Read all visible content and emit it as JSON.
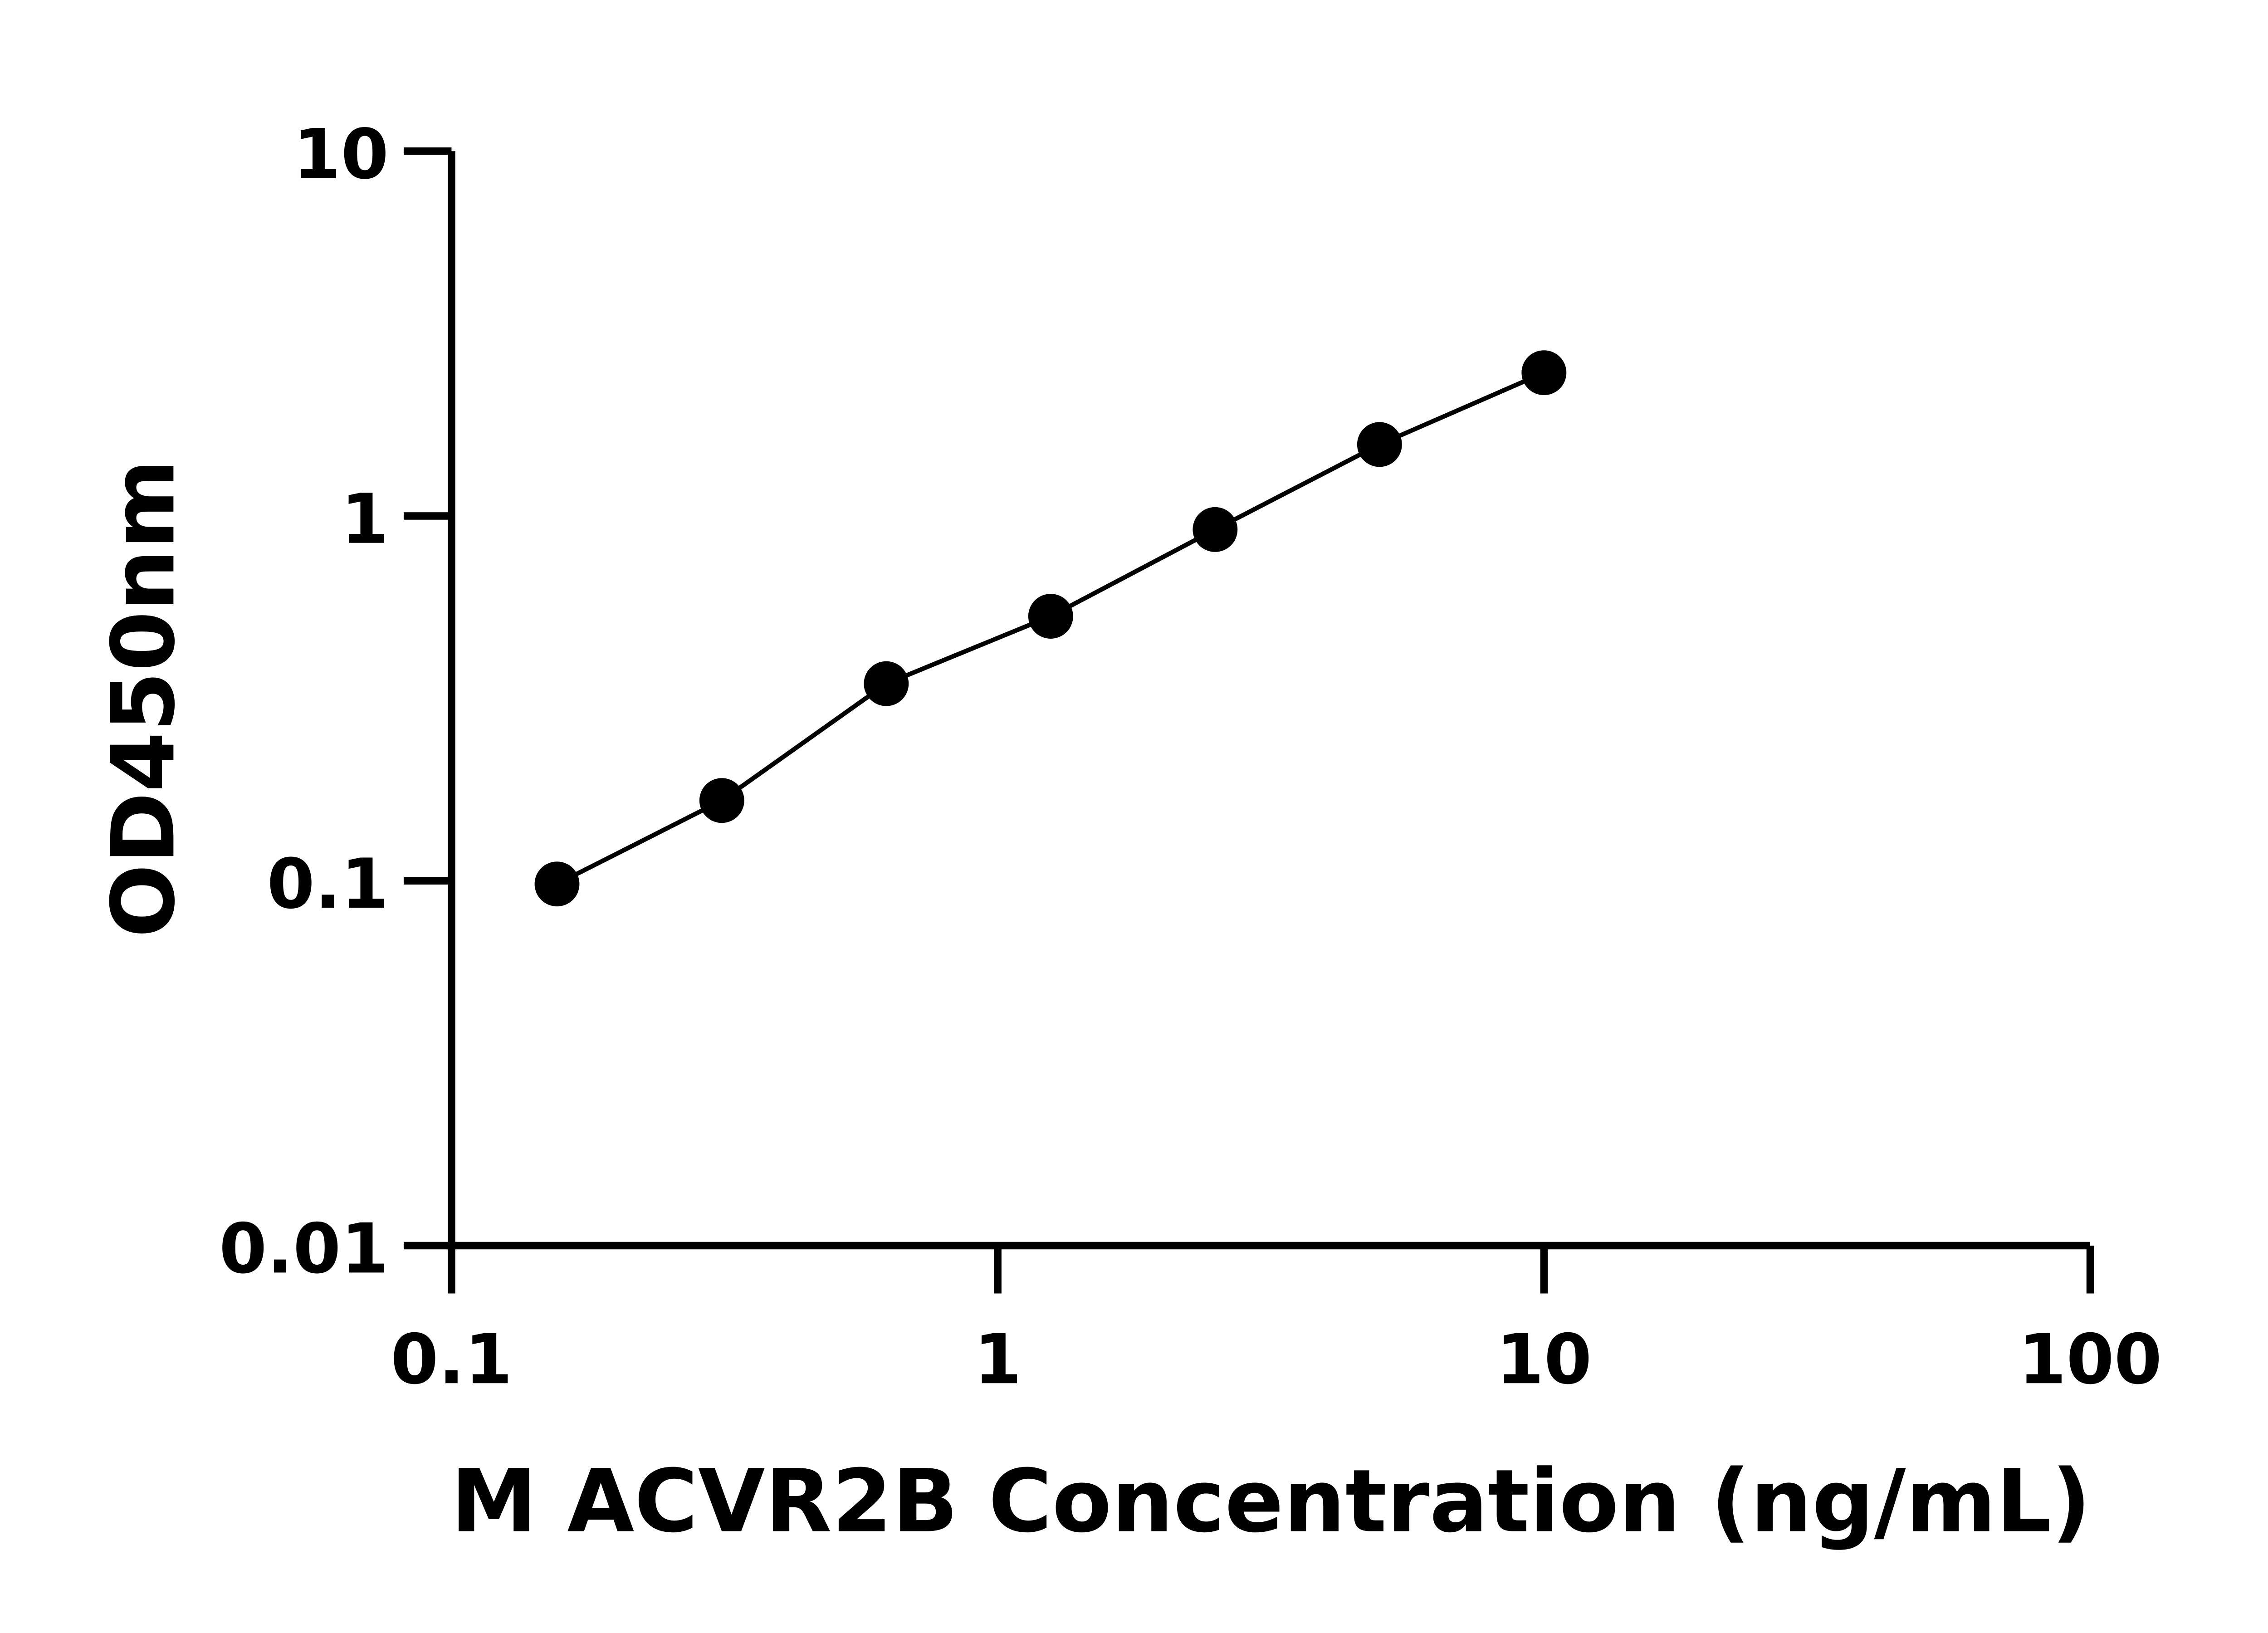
{
  "chart_data": {
    "type": "scatter",
    "title": "",
    "xlabel": "M ACVR2B Concentration (ng/mL)",
    "ylabel": "OD450nm",
    "xscale": "log",
    "yscale": "log",
    "xlim": [
      0.1,
      100
    ],
    "ylim": [
      0.01,
      10
    ],
    "xticks": [
      "0.1",
      "1",
      "10",
      "100"
    ],
    "yticks": [
      "0.01",
      "0.1",
      "1",
      "10"
    ],
    "grid": false,
    "legend": "none",
    "connect_points": true,
    "series": [
      {
        "x": [
          0.156,
          0.3125,
          0.625,
          1.25,
          2.5,
          5,
          10
        ],
        "y": [
          0.098,
          0.166,
          0.347,
          0.531,
          0.918,
          1.57,
          2.47
        ]
      }
    ],
    "colors": {
      "points": "#000000",
      "line": "#000000",
      "axes": "#000000"
    }
  }
}
